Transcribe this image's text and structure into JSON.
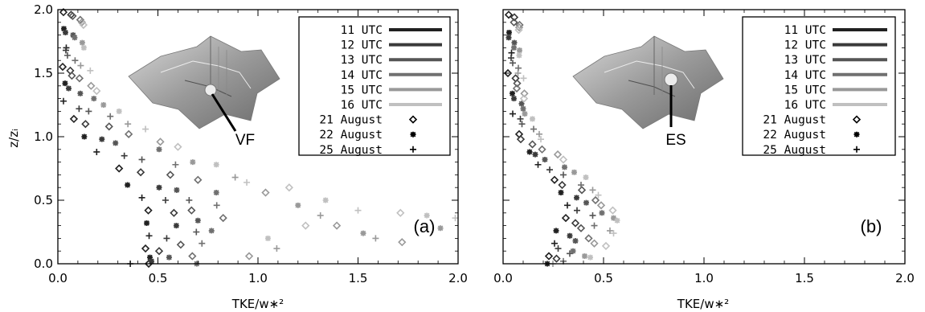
{
  "chart_data": [
    {
      "type": "scatter",
      "panel_label": "(a)",
      "site_label": "VF",
      "xlabel": "TKE/w∗²",
      "ylabel": "z/zᵢ",
      "xlim": [
        0,
        2.0
      ],
      "ylim": [
        0,
        2.0
      ],
      "x_ticks": [
        "0.0",
        "0.5",
        "1.0",
        "1.5",
        "2.0"
      ],
      "y_ticks": [
        "0.0",
        "0.5",
        "1.0",
        "1.5",
        "2.0"
      ],
      "legend": {
        "placement": "top-right",
        "lines": [
          {
            "label": "11 UTC",
            "color": "#202020"
          },
          {
            "label": "12 UTC",
            "color": "#3a3a3a"
          },
          {
            "label": "13 UTC",
            "color": "#555555"
          },
          {
            "label": "14 UTC",
            "color": "#707070"
          },
          {
            "label": "15 UTC",
            "color": "#999999"
          },
          {
            "label": "16 UTC",
            "color": "#c0c0c0"
          }
        ],
        "markers": [
          {
            "label": "21 August",
            "marker": "◇"
          },
          {
            "label": "22 August",
            "marker": "✳"
          },
          {
            "label": "25 August",
            "marker": "+"
          }
        ]
      },
      "series": [
        {
          "name": "11 UTC",
          "color": "#202020",
          "points": [
            [
              0.04,
              1.98
            ],
            [
              0.03,
              1.85
            ],
            [
              0.03,
              1.7
            ],
            [
              0.03,
              1.55
            ],
            [
              0.03,
              1.42
            ],
            [
              0.04,
              1.28
            ],
            [
              0.08,
              1.14
            ],
            [
              0.12,
              1.0
            ],
            [
              0.2,
              0.88
            ],
            [
              0.3,
              0.75
            ],
            [
              0.36,
              0.62
            ],
            [
              0.42,
              0.52
            ],
            [
              0.44,
              0.42
            ],
            [
              0.45,
              0.32
            ],
            [
              0.45,
              0.22
            ],
            [
              0.45,
              0.12
            ],
            [
              0.46,
              0.05
            ],
            [
              0.35,
              0.0
            ],
            [
              0.46,
              0.0
            ]
          ]
        },
        {
          "name": "12 UTC",
          "color": "#3a3a3a",
          "points": [
            [
              0.06,
              1.96
            ],
            [
              0.05,
              1.82
            ],
            [
              0.04,
              1.68
            ],
            [
              0.05,
              1.52
            ],
            [
              0.06,
              1.38
            ],
            [
              0.1,
              1.22
            ],
            [
              0.15,
              1.1
            ],
            [
              0.22,
              0.98
            ],
            [
              0.32,
              0.85
            ],
            [
              0.42,
              0.72
            ],
            [
              0.5,
              0.6
            ],
            [
              0.55,
              0.5
            ],
            [
              0.58,
              0.4
            ],
            [
              0.58,
              0.3
            ],
            [
              0.55,
              0.2
            ],
            [
              0.5,
              0.1
            ],
            [
              0.48,
              0.02
            ]
          ]
        },
        {
          "name": "13 UTC",
          "color": "#555555",
          "points": [
            [
              0.08,
              1.95
            ],
            [
              0.07,
              1.8
            ],
            [
              0.06,
              1.64
            ],
            [
              0.07,
              1.48
            ],
            [
              0.1,
              1.34
            ],
            [
              0.16,
              1.2
            ],
            [
              0.25,
              1.08
            ],
            [
              0.3,
              0.95
            ],
            [
              0.42,
              0.82
            ],
            [
              0.55,
              0.7
            ],
            [
              0.6,
              0.58
            ],
            [
              0.65,
              0.5
            ],
            [
              0.68,
              0.42
            ],
            [
              0.7,
              0.34
            ],
            [
              0.68,
              0.25
            ],
            [
              0.62,
              0.15
            ],
            [
              0.55,
              0.05
            ]
          ]
        },
        {
          "name": "14 UTC",
          "color": "#707070",
          "points": [
            [
              0.1,
              1.92
            ],
            [
              0.09,
              1.78
            ],
            [
              0.08,
              1.6
            ],
            [
              0.12,
              1.46
            ],
            [
              0.18,
              1.3
            ],
            [
              0.25,
              1.16
            ],
            [
              0.36,
              1.02
            ],
            [
              0.5,
              0.9
            ],
            [
              0.6,
              0.78
            ],
            [
              0.7,
              0.66
            ],
            [
              0.78,
              0.56
            ],
            [
              0.8,
              0.46
            ],
            [
              0.82,
              0.36
            ],
            [
              0.78,
              0.26
            ],
            [
              0.72,
              0.16
            ],
            [
              0.66,
              0.06
            ],
            [
              0.7,
              0.0
            ]
          ]
        },
        {
          "name": "15 UTC",
          "color": "#999999",
          "points": [
            [
              0.12,
              1.9
            ],
            [
              0.11,
              1.74
            ],
            [
              0.12,
              1.56
            ],
            [
              0.16,
              1.4
            ],
            [
              0.24,
              1.25
            ],
            [
              0.35,
              1.1
            ],
            [
              0.5,
              0.96
            ],
            [
              0.68,
              0.8
            ],
            [
              0.88,
              0.68
            ],
            [
              1.05,
              0.56
            ],
            [
              1.2,
              0.46
            ],
            [
              1.3,
              0.38
            ],
            [
              1.4,
              0.3
            ],
            [
              1.52,
              0.24
            ],
            [
              1.6,
              0.2
            ],
            [
              1.72,
              0.17
            ],
            [
              1.9,
              0.28
            ],
            [
              1.1,
              0.12
            ],
            [
              0.95,
              0.06
            ]
          ]
        },
        {
          "name": "16 UTC",
          "color": "#c0c0c0",
          "points": [
            [
              0.14,
              1.88
            ],
            [
              0.13,
              1.7
            ],
            [
              0.15,
              1.52
            ],
            [
              0.2,
              1.36
            ],
            [
              0.3,
              1.2
            ],
            [
              0.45,
              1.06
            ],
            [
              0.6,
              0.92
            ],
            [
              0.78,
              0.78
            ],
            [
              0.95,
              0.64
            ],
            [
              1.15,
              0.6
            ],
            [
              1.35,
              0.5
            ],
            [
              1.5,
              0.42
            ],
            [
              1.7,
              0.4
            ],
            [
              1.85,
              0.38
            ],
            [
              1.98,
              0.36
            ],
            [
              1.25,
              0.3
            ],
            [
              1.05,
              0.2
            ]
          ]
        }
      ]
    },
    {
      "type": "scatter",
      "panel_label": "(b)",
      "site_label": "ES",
      "xlabel": "TKE/w∗²",
      "ylabel": "",
      "xlim": [
        0,
        2.0
      ],
      "ylim": [
        0,
        2.0
      ],
      "x_ticks": [
        "0.0",
        "0.5",
        "1.0",
        "1.5",
        "2.0"
      ],
      "y_ticks": [],
      "legend": {
        "placement": "top-right",
        "lines": [
          {
            "label": "11 UTC",
            "color": "#202020"
          },
          {
            "label": "12 UTC",
            "color": "#3a3a3a"
          },
          {
            "label": "13 UTC",
            "color": "#555555"
          },
          {
            "label": "14 UTC",
            "color": "#707070"
          },
          {
            "label": "15 UTC",
            "color": "#999999"
          },
          {
            "label": "16 UTC",
            "color": "#c0c0c0"
          }
        ],
        "markers": [
          {
            "label": "21 August",
            "marker": "◇"
          },
          {
            "label": "22 August",
            "marker": "✳"
          },
          {
            "label": "25 August",
            "marker": "+"
          }
        ]
      },
      "series": [
        {
          "name": "11 UTC",
          "color": "#202020",
          "points": [
            [
              0.04,
              1.96
            ],
            [
              0.03,
              1.82
            ],
            [
              0.03,
              1.66
            ],
            [
              0.03,
              1.5
            ],
            [
              0.04,
              1.34
            ],
            [
              0.06,
              1.18
            ],
            [
              0.08,
              1.02
            ],
            [
              0.12,
              0.88
            ],
            [
              0.18,
              0.78
            ],
            [
              0.25,
              0.66
            ],
            [
              0.3,
              0.56
            ],
            [
              0.32,
              0.46
            ],
            [
              0.3,
              0.36
            ],
            [
              0.27,
              0.26
            ],
            [
              0.25,
              0.16
            ],
            [
              0.24,
              0.06
            ],
            [
              0.22,
              0.0
            ]
          ]
        },
        {
          "name": "12 UTC",
          "color": "#3a3a3a",
          "points": [
            [
              0.05,
              1.94
            ],
            [
              0.04,
              1.78
            ],
            [
              0.04,
              1.62
            ],
            [
              0.05,
              1.46
            ],
            [
              0.06,
              1.3
            ],
            [
              0.08,
              1.14
            ],
            [
              0.1,
              0.98
            ],
            [
              0.16,
              0.86
            ],
            [
              0.22,
              0.74
            ],
            [
              0.3,
              0.62
            ],
            [
              0.36,
              0.52
            ],
            [
              0.38,
              0.42
            ],
            [
              0.36,
              0.32
            ],
            [
              0.32,
              0.22
            ],
            [
              0.28,
              0.12
            ],
            [
              0.26,
              0.04
            ]
          ]
        },
        {
          "name": "13 UTC",
          "color": "#555555",
          "points": [
            [
              0.06,
              1.9
            ],
            [
              0.05,
              1.74
            ],
            [
              0.06,
              1.58
            ],
            [
              0.07,
              1.42
            ],
            [
              0.08,
              1.26
            ],
            [
              0.1,
              1.1
            ],
            [
              0.14,
              0.94
            ],
            [
              0.22,
              0.82
            ],
            [
              0.3,
              0.7
            ],
            [
              0.38,
              0.58
            ],
            [
              0.42,
              0.48
            ],
            [
              0.44,
              0.38
            ],
            [
              0.4,
              0.28
            ],
            [
              0.36,
              0.18
            ],
            [
              0.32,
              0.08
            ]
          ]
        },
        {
          "name": "14 UTC",
          "color": "#707070",
          "points": [
            [
              0.07,
              1.88
            ],
            [
              0.06,
              1.7
            ],
            [
              0.07,
              1.54
            ],
            [
              0.08,
              1.38
            ],
            [
              0.1,
              1.22
            ],
            [
              0.14,
              1.06
            ],
            [
              0.2,
              0.9
            ],
            [
              0.3,
              0.76
            ],
            [
              0.4,
              0.62
            ],
            [
              0.46,
              0.5
            ],
            [
              0.48,
              0.4
            ],
            [
              0.46,
              0.3
            ],
            [
              0.42,
              0.2
            ],
            [
              0.36,
              0.1
            ],
            [
              0.3,
              0.02
            ]
          ]
        },
        {
          "name": "15 UTC",
          "color": "#999999",
          "points": [
            [
              0.08,
              1.86
            ],
            [
              0.07,
              1.68
            ],
            [
              0.08,
              1.5
            ],
            [
              0.1,
              1.34
            ],
            [
              0.12,
              1.18
            ],
            [
              0.18,
              1.02
            ],
            [
              0.26,
              0.86
            ],
            [
              0.36,
              0.72
            ],
            [
              0.44,
              0.58
            ],
            [
              0.5,
              0.46
            ],
            [
              0.55,
              0.36
            ],
            [
              0.52,
              0.26
            ],
            [
              0.46,
              0.16
            ],
            [
              0.4,
              0.06
            ],
            [
              0.26,
              0.0
            ]
          ]
        },
        {
          "name": "16 UTC",
          "color": "#c0c0c0",
          "points": [
            [
              0.09,
              1.84
            ],
            [
              0.08,
              1.64
            ],
            [
              0.09,
              1.46
            ],
            [
              0.11,
              1.3
            ],
            [
              0.14,
              1.14
            ],
            [
              0.2,
              0.98
            ],
            [
              0.3,
              0.82
            ],
            [
              0.4,
              0.68
            ],
            [
              0.48,
              0.54
            ],
            [
              0.54,
              0.42
            ],
            [
              0.58,
              0.34
            ],
            [
              0.55,
              0.24
            ],
            [
              0.5,
              0.14
            ],
            [
              0.44,
              0.05
            ]
          ]
        }
      ]
    }
  ]
}
